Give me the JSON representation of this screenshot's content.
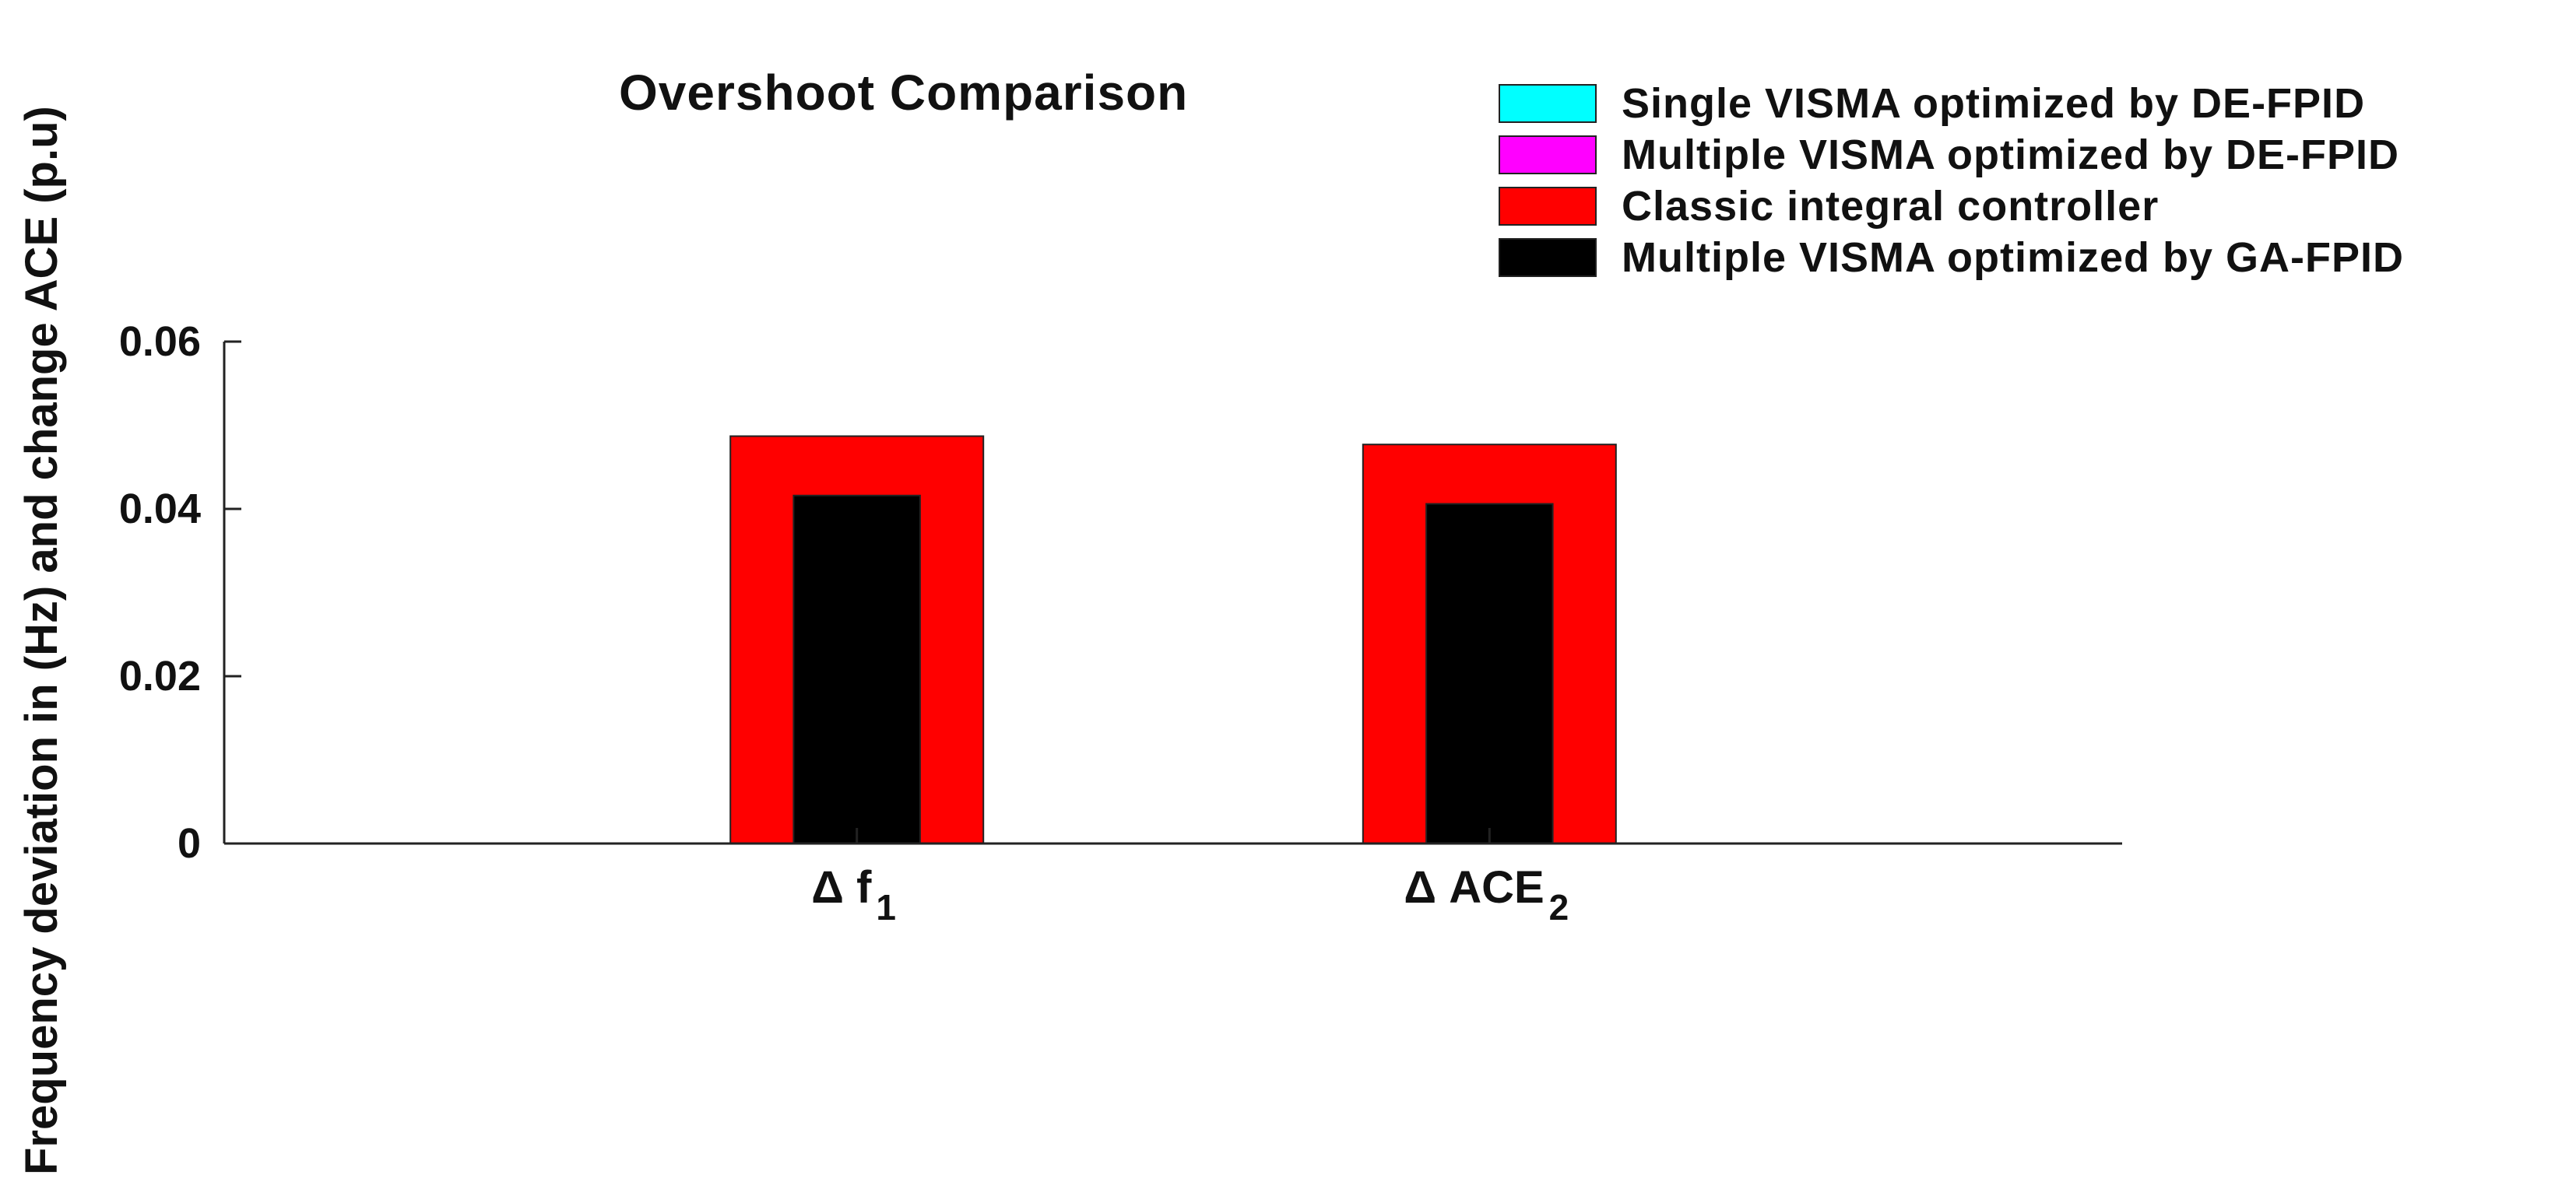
{
  "chart_data": {
    "type": "bar",
    "title": "Overshoot Comparison",
    "xlabel": "",
    "ylabel": "Frequency deviation in (Hz) and change ACE (p.u)",
    "ylim": [
      0,
      0.06
    ],
    "yticks": [
      "0",
      "0.02",
      "0.04",
      "0.06"
    ],
    "categories": [
      {
        "main": "Δ f",
        "sub": "1"
      },
      {
        "main": "Δ ACE",
        "sub": "2"
      }
    ],
    "series": [
      {
        "name": "Single VISMA optimized by DE-FPID",
        "color": "#00FFFF",
        "values": [
          0,
          0
        ]
      },
      {
        "name": "Multiple VISMA optimized by DE-FPID",
        "color": "#FF00FF",
        "values": [
          0,
          0
        ]
      },
      {
        "name": "Classic integral controller",
        "color": "#FF0000",
        "values": [
          0.0487,
          0.0477
        ]
      },
      {
        "name": "Multiple VISMA optimized by GA-FPID",
        "color": "#000000",
        "values": [
          0.0416,
          0.0406
        ]
      }
    ],
    "grid": false,
    "legend_position": "top-right"
  }
}
